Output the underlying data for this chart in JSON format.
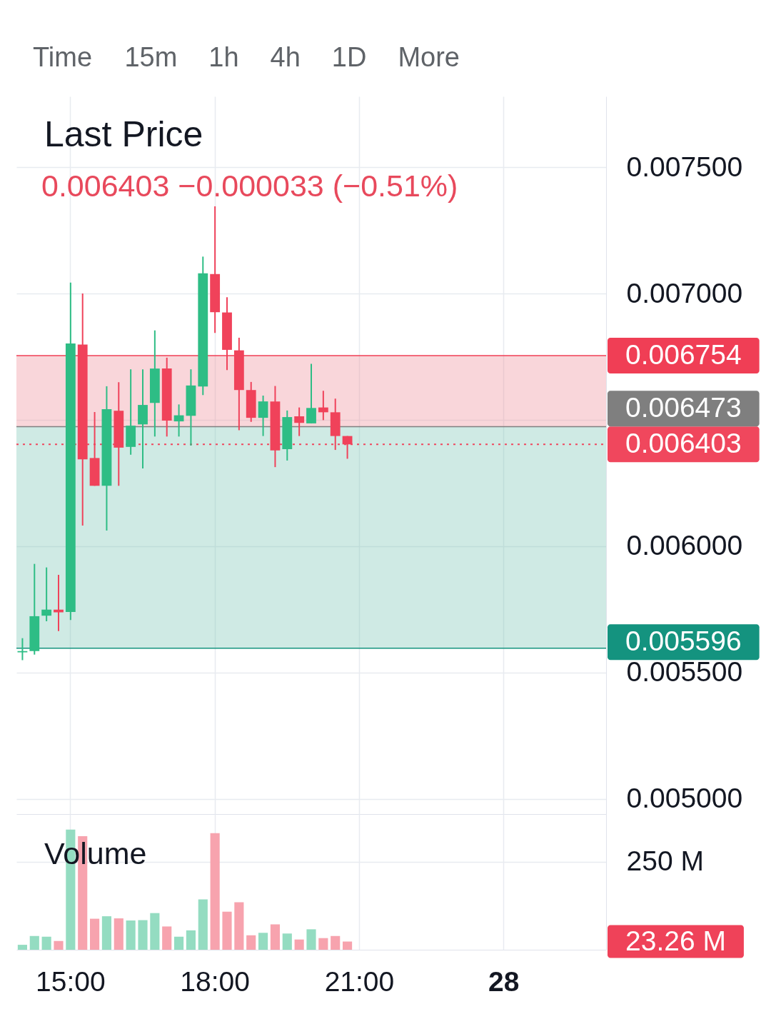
{
  "chart_data": [
    {
      "type": "other",
      "annotations": [
        "Time",
        "15m",
        "1h",
        "4h",
        "1D",
        "More"
      ]
    },
    {
      "type": "candlestick",
      "title": "Last Price",
      "subtitle": "0.006403 −0.000033 (−0.51%)",
      "categories": [
        null,
        null,
        null,
        null,
        null,
        null,
        null,
        null,
        null,
        null,
        null,
        null,
        null,
        null,
        null,
        null,
        null,
        null,
        null,
        null,
        null,
        null,
        null,
        null,
        null,
        null,
        null,
        null,
        null,
        null,
        null,
        null,
        null,
        null,
        null,
        null,
        null,
        null,
        null,
        null,
        null,
        null,
        null,
        null,
        null,
        null,
        null,
        null,
        null
      ],
      "ohlc": [
        [
          0.00558,
          0.005636,
          0.005549,
          0.005585
        ],
        [
          0.005585,
          0.00593,
          0.005571,
          0.005723
        ],
        [
          0.005725,
          0.005916,
          0.005703,
          0.005749
        ],
        [
          0.005749,
          0.005887,
          0.005664,
          0.005738
        ],
        [
          0.00574,
          0.007043,
          0.005708,
          0.006802
        ],
        [
          0.006798,
          0.007,
          0.006082,
          0.006344
        ],
        [
          0.006349,
          0.006531,
          0.006239,
          0.006239
        ],
        [
          0.006239,
          0.006633,
          0.006062,
          0.006542
        ],
        [
          0.006536,
          0.006649,
          0.006239,
          0.00639
        ],
        [
          0.006393,
          0.0067,
          0.006362,
          0.006477
        ],
        [
          0.006482,
          0.0067,
          0.006308,
          0.006559
        ],
        [
          0.006567,
          0.006854,
          0.006434,
          0.006703
        ],
        [
          0.006703,
          0.006746,
          0.006434,
          0.006497
        ],
        [
          0.006494,
          0.006561,
          0.006434,
          0.006518
        ],
        [
          0.006516,
          0.0067,
          0.006398,
          0.006636
        ],
        [
          0.006632,
          0.007146,
          0.006598,
          0.00708
        ],
        [
          0.007077,
          0.007345,
          0.006844,
          0.006926
        ],
        [
          0.006925,
          0.006985,
          0.006697,
          0.006777
        ],
        [
          0.006775,
          0.006825,
          0.006459,
          0.006618
        ],
        [
          0.006618,
          0.00665,
          0.006492,
          0.006508
        ],
        [
          0.006508,
          0.006596,
          0.006436,
          0.006573
        ],
        [
          0.006573,
          0.006634,
          0.006313,
          0.006379
        ],
        [
          0.006384,
          0.006537,
          0.006339,
          0.006511
        ],
        [
          0.006514,
          0.006549,
          0.006436,
          0.006488
        ],
        [
          0.006486,
          0.006722,
          0.006486,
          0.006547
        ],
        [
          0.006549,
          0.006615,
          0.006499,
          0.00653
        ],
        [
          0.00653,
          0.006584,
          0.006381,
          0.006436
        ],
        [
          0.006436,
          0.006436,
          0.006346,
          0.006403
        ],
        null,
        null,
        null,
        null,
        null,
        null,
        null,
        null,
        null,
        null,
        null,
        null,
        null,
        null,
        null,
        null,
        null,
        null,
        null,
        null,
        null
      ],
      "colors": [
        "#2ebd85",
        "#2ebd85",
        "#2ebd85",
        "#f0425a",
        "#2ebd85",
        "#f0425a",
        "#f0425a",
        "#2ebd85",
        "#f0425a",
        "#2ebd85",
        "#2ebd85",
        "#2ebd85",
        "#f0425a",
        "#2ebd85",
        "#2ebd85",
        "#2ebd85",
        "#f0425a",
        "#f0425a",
        "#f0425a",
        "#f0425a",
        "#2ebd85",
        "#f0425a",
        "#2ebd85",
        "#f0425a",
        "#2ebd85",
        "#f0425a",
        "#f0425a",
        "#f0425a",
        null,
        null,
        null,
        null,
        null,
        null,
        null,
        null,
        null,
        null,
        null,
        null,
        null,
        null,
        null,
        null,
        null,
        null,
        null,
        null,
        null
      ],
      "ylim": [
        0.00494,
        0.00778
      ],
      "yticks": [
        {
          "value": 0.005,
          "label": "0.005000"
        },
        {
          "value": 0.0055,
          "label": "0.005500"
        },
        {
          "value": 0.006,
          "label": "0.006000"
        },
        {
          "value": 0.0065,
          "label": null
        },
        {
          "value": 0.007,
          "label": "0.007000"
        },
        {
          "value": 0.0075,
          "label": "0.007500"
        }
      ],
      "grid": true,
      "tick_labels": "y",
      "bands": [
        {
          "axis": "y",
          "from": 0.006473,
          "to": 0.006754,
          "color": "#f9d6da"
        },
        {
          "axis": "y",
          "from": 0.005596,
          "to": 0.006473,
          "color": "#cfeae4"
        }
      ],
      "ref_lines": [
        {
          "axis": "y",
          "value": 0.006403,
          "label": "0.006403",
          "color": "#f0475d",
          "line_style": "dotted"
        },
        {
          "axis": "y",
          "value": 0.006754,
          "label": "0.006754",
          "color": "#f03e55"
        },
        {
          "axis": "y",
          "value": 0.006473,
          "label": "0.006473",
          "color": "#7f7f7f"
        },
        {
          "axis": "y",
          "value": 0.005596,
          "label": "0.005596",
          "color": "#14937f"
        }
      ]
    },
    {
      "type": "bar",
      "title": "Volume",
      "categories": [
        null,
        null,
        null,
        null,
        "15:00",
        null,
        null,
        null,
        null,
        null,
        null,
        null,
        null,
        null,
        null,
        null,
        "18:00",
        null,
        null,
        null,
        null,
        null,
        null,
        null,
        null,
        null,
        null,
        null,
        "21:00",
        null,
        null,
        null,
        null,
        null,
        null,
        null,
        null,
        null,
        null,
        null,
        "28",
        null,
        null,
        null,
        null,
        null,
        null,
        null,
        null
      ],
      "values": [
        14,
        39,
        37,
        25,
        341,
        322,
        88,
        95,
        89,
        83,
        84,
        104,
        66,
        37,
        55,
        143,
        331,
        108,
        135,
        41,
        48,
        72,
        46,
        29,
        58,
        33,
        39,
        23.26,
        null,
        null,
        null,
        null,
        null,
        null,
        null,
        null,
        null,
        null,
        null,
        null,
        null,
        null,
        null,
        null,
        null,
        null,
        null,
        null,
        null
      ],
      "colors": [
        "#94dcc1",
        "#94dcc1",
        "#94dcc1",
        "#f7a3ae",
        "#94dcc1",
        "#f7a3ae",
        "#f7a3ae",
        "#94dcc1",
        "#f7a3ae",
        "#94dcc1",
        "#94dcc1",
        "#94dcc1",
        "#f7a3ae",
        "#94dcc1",
        "#94dcc1",
        "#94dcc1",
        "#f7a3ae",
        "#f7a3ae",
        "#f7a3ae",
        "#f7a3ae",
        "#94dcc1",
        "#f7a3ae",
        "#94dcc1",
        "#f7a3ae",
        "#94dcc1",
        "#f7a3ae",
        "#f7a3ae",
        "#f7a3ae",
        null,
        null,
        null,
        null,
        null,
        null,
        null,
        null,
        null,
        null,
        null,
        null,
        null,
        null,
        null,
        null,
        null,
        null,
        null,
        null,
        null
      ],
      "annotations": [
        "23.26 M"
      ],
      "ylim": [
        0,
        385
      ],
      "yticks": [
        {
          "value": 250,
          "label": "250 M"
        }
      ],
      "grid": true
    }
  ]
}
